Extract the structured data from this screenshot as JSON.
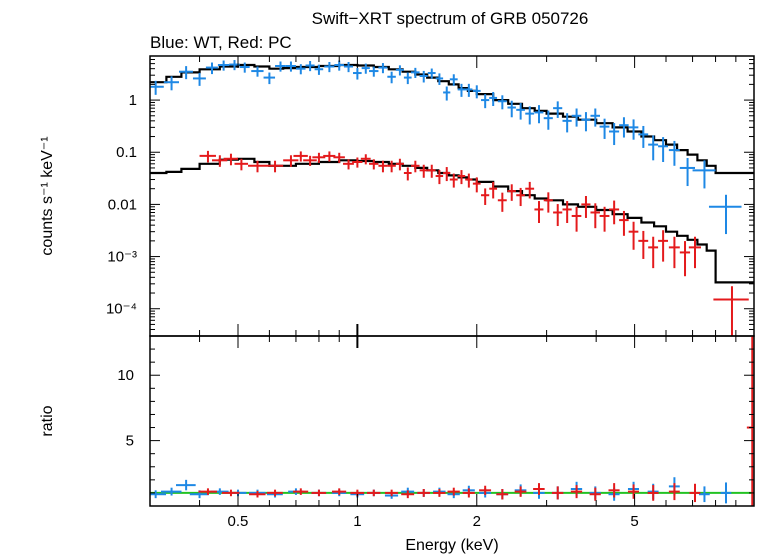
{
  "chart_data": [
    {
      "type": "scatter",
      "title": "Swift−XRT spectrum of GRB 050726",
      "subtitle": "Blue: WT, Red: PC",
      "xlabel": "",
      "ylabel": "counts s⁻¹ keV⁻¹",
      "xscale": "log",
      "yscale": "log",
      "xlim": [
        0.3,
        10
      ],
      "ylim": [
        3e-05,
        7
      ],
      "yticks": [
        {
          "value": 1,
          "label": "1"
        },
        {
          "value": 0.1,
          "label": "0.1"
        },
        {
          "value": 0.01,
          "label": "0.01"
        },
        {
          "value": 0.001,
          "label": "10⁻³"
        },
        {
          "value": 0.0001,
          "label": "10⁻⁴"
        }
      ],
      "colors": {
        "wt": "#1e88e5",
        "pc": "#e41a1c",
        "model": "#000000"
      },
      "series": [
        {
          "key": "wt",
          "x": [
            0.31,
            0.34,
            0.37,
            0.4,
            0.43,
            0.46,
            0.49,
            0.52,
            0.56,
            0.6,
            0.64,
            0.68,
            0.72,
            0.76,
            0.8,
            0.85,
            0.9,
            0.95,
            1.0,
            1.05,
            1.1,
            1.16,
            1.22,
            1.28,
            1.34,
            1.4,
            1.47,
            1.54,
            1.61,
            1.68,
            1.75,
            1.83,
            1.91,
            2.0,
            2.1,
            2.2,
            2.32,
            2.45,
            2.58,
            2.72,
            2.87,
            3.03,
            3.2,
            3.38,
            3.57,
            3.77,
            3.98,
            4.2,
            4.44,
            4.7,
            4.97,
            5.26,
            5.57,
            5.9,
            6.3,
            6.8,
            7.5,
            8.5
          ],
          "y": [
            1.8,
            2.2,
            3.5,
            2.6,
            4.2,
            4.7,
            4.8,
            4.3,
            3.6,
            2.7,
            4.5,
            4.5,
            4.0,
            4.6,
            3.9,
            4.4,
            4.7,
            4.4,
            3.3,
            4.1,
            3.6,
            4.2,
            2.8,
            3.8,
            2.7,
            3.4,
            2.9,
            3.3,
            2.6,
            1.4,
            2.5,
            1.6,
            1.6,
            1.5,
            1.0,
            1.1,
            0.95,
            0.72,
            0.65,
            0.55,
            0.58,
            0.45,
            0.7,
            0.4,
            0.5,
            0.42,
            0.5,
            0.31,
            0.25,
            0.33,
            0.3,
            0.22,
            0.14,
            0.13,
            0.11,
            0.05,
            0.045,
            0.009
          ],
          "xerr": [
            0.015,
            0.015,
            0.015,
            0.015,
            0.015,
            0.015,
            0.015,
            0.015,
            0.02,
            0.02,
            0.02,
            0.02,
            0.02,
            0.02,
            0.02,
            0.025,
            0.025,
            0.025,
            0.025,
            0.025,
            0.03,
            0.03,
            0.03,
            0.03,
            0.03,
            0.035,
            0.035,
            0.035,
            0.035,
            0.035,
            0.04,
            0.04,
            0.04,
            0.045,
            0.05,
            0.05,
            0.06,
            0.06,
            0.065,
            0.07,
            0.075,
            0.08,
            0.085,
            0.09,
            0.1,
            0.1,
            0.11,
            0.12,
            0.13,
            0.13,
            0.14,
            0.15,
            0.16,
            0.17,
            0.2,
            0.3,
            0.5,
            0.8
          ],
          "yerr_rel": [
            0.3,
            0.3,
            0.28,
            0.28,
            0.25,
            0.22,
            0.22,
            0.22,
            0.22,
            0.25,
            0.22,
            0.22,
            0.22,
            0.22,
            0.22,
            0.22,
            0.22,
            0.22,
            0.25,
            0.22,
            0.22,
            0.22,
            0.25,
            0.22,
            0.25,
            0.22,
            0.25,
            0.22,
            0.25,
            0.3,
            0.25,
            0.28,
            0.28,
            0.28,
            0.3,
            0.3,
            0.3,
            0.35,
            0.35,
            0.38,
            0.38,
            0.4,
            0.35,
            0.4,
            0.38,
            0.4,
            0.38,
            0.42,
            0.45,
            0.42,
            0.42,
            0.45,
            0.5,
            0.5,
            0.5,
            0.55,
            0.55,
            0.7
          ]
        },
        {
          "key": "pc",
          "x": [
            0.42,
            0.45,
            0.48,
            0.51,
            0.56,
            0.62,
            0.68,
            0.72,
            0.76,
            0.8,
            0.85,
            0.9,
            0.95,
            1.0,
            1.05,
            1.1,
            1.16,
            1.22,
            1.28,
            1.34,
            1.4,
            1.47,
            1.54,
            1.61,
            1.68,
            1.75,
            1.83,
            1.91,
            2.0,
            2.1,
            2.2,
            2.32,
            2.45,
            2.58,
            2.72,
            2.87,
            3.03,
            3.2,
            3.38,
            3.57,
            3.77,
            3.98,
            4.2,
            4.44,
            4.7,
            4.97,
            5.26,
            5.57,
            5.9,
            6.3,
            6.7,
            7.1,
            8.8
          ],
          "y": [
            0.085,
            0.07,
            0.075,
            0.06,
            0.055,
            0.055,
            0.07,
            0.085,
            0.07,
            0.08,
            0.085,
            0.08,
            0.06,
            0.065,
            0.075,
            0.06,
            0.055,
            0.055,
            0.06,
            0.04,
            0.055,
            0.045,
            0.045,
            0.035,
            0.04,
            0.03,
            0.035,
            0.03,
            0.025,
            0.015,
            0.02,
            0.012,
            0.018,
            0.015,
            0.02,
            0.008,
            0.012,
            0.007,
            0.008,
            0.006,
            0.01,
            0.007,
            0.006,
            0.008,
            0.005,
            0.003,
            0.002,
            0.0015,
            0.002,
            0.0015,
            0.0012,
            0.0015,
            0.00015
          ],
          "xerr": [
            0.02,
            0.02,
            0.02,
            0.02,
            0.03,
            0.03,
            0.03,
            0.03,
            0.03,
            0.03,
            0.03,
            0.03,
            0.03,
            0.03,
            0.03,
            0.03,
            0.03,
            0.03,
            0.03,
            0.03,
            0.035,
            0.035,
            0.035,
            0.035,
            0.035,
            0.04,
            0.04,
            0.04,
            0.045,
            0.05,
            0.05,
            0.06,
            0.06,
            0.065,
            0.07,
            0.075,
            0.08,
            0.085,
            0.09,
            0.1,
            0.1,
            0.11,
            0.12,
            0.13,
            0.13,
            0.14,
            0.15,
            0.16,
            0.17,
            0.2,
            0.2,
            0.25,
            0.9
          ],
          "yerr_rel": [
            0.25,
            0.25,
            0.25,
            0.25,
            0.25,
            0.25,
            0.25,
            0.22,
            0.22,
            0.22,
            0.22,
            0.22,
            0.22,
            0.22,
            0.22,
            0.22,
            0.25,
            0.25,
            0.25,
            0.28,
            0.25,
            0.28,
            0.28,
            0.3,
            0.3,
            0.3,
            0.3,
            0.3,
            0.32,
            0.35,
            0.35,
            0.4,
            0.35,
            0.38,
            0.35,
            0.45,
            0.42,
            0.45,
            0.45,
            0.5,
            0.45,
            0.5,
            0.5,
            0.48,
            0.5,
            0.55,
            0.55,
            0.6,
            0.6,
            0.6,
            0.65,
            0.6,
            0.8
          ]
        }
      ],
      "models": [
        {
          "key": "wt",
          "x": [
            0.3,
            0.33,
            0.36,
            0.4,
            0.45,
            0.5,
            0.55,
            0.6,
            0.65,
            0.7,
            0.8,
            0.9,
            1.0,
            1.1,
            1.2,
            1.3,
            1.4,
            1.5,
            1.6,
            1.7,
            1.8,
            1.9,
            2.0,
            2.2,
            2.4,
            2.6,
            2.8,
            3.0,
            3.3,
            3.6,
            4.0,
            4.4,
            4.8,
            5.2,
            5.6,
            6.0,
            6.4,
            6.8,
            7.2,
            7.6,
            8.0,
            10.0
          ],
          "y": [
            2.2,
            2.8,
            3.4,
            3.9,
            4.4,
            4.7,
            4.4,
            4.0,
            4.1,
            4.3,
            4.5,
            4.7,
            4.6,
            4.3,
            3.9,
            3.5,
            3.1,
            2.7,
            2.3,
            2.0,
            1.7,
            1.5,
            1.3,
            1.0,
            0.85,
            0.7,
            0.62,
            0.55,
            0.48,
            0.42,
            0.36,
            0.3,
            0.25,
            0.2,
            0.17,
            0.14,
            0.11,
            0.09,
            0.07,
            0.055,
            0.04,
            0.025
          ]
        },
        {
          "key": "pc",
          "x": [
            0.3,
            0.33,
            0.36,
            0.4,
            0.45,
            0.5,
            0.55,
            0.6,
            0.65,
            0.7,
            0.8,
            0.9,
            1.0,
            1.1,
            1.2,
            1.3,
            1.4,
            1.5,
            1.6,
            1.7,
            1.8,
            1.9,
            2.0,
            2.2,
            2.4,
            2.6,
            2.8,
            3.0,
            3.3,
            3.6,
            4.0,
            4.4,
            4.8,
            5.2,
            5.6,
            6.0,
            6.4,
            6.8,
            7.2,
            7.6,
            8.0,
            10.0
          ],
          "y": [
            0.04,
            0.042,
            0.048,
            0.06,
            0.072,
            0.075,
            0.065,
            0.055,
            0.055,
            0.06,
            0.065,
            0.07,
            0.068,
            0.065,
            0.06,
            0.055,
            0.05,
            0.045,
            0.04,
            0.036,
            0.033,
            0.03,
            0.027,
            0.022,
            0.018,
            0.015,
            0.013,
            0.012,
            0.01,
            0.009,
            0.0078,
            0.0065,
            0.0055,
            0.0045,
            0.0038,
            0.003,
            0.0025,
            0.0021,
            0.0017,
            0.0013,
            0.00032,
            0.00032
          ]
        }
      ]
    },
    {
      "type": "scatter",
      "xlabel": "Energy (keV)",
      "ylabel": "ratio",
      "xscale": "log",
      "yscale": "linear",
      "xlim": [
        0.3,
        10
      ],
      "ylim": [
        0,
        13
      ],
      "xticks": [
        {
          "value": 0.5,
          "label": "0.5"
        },
        {
          "value": 1,
          "label": "1"
        },
        {
          "value": 2,
          "label": "2"
        },
        {
          "value": 5,
          "label": "5"
        }
      ],
      "yticks": [
        {
          "value": 5,
          "label": "5"
        },
        {
          "value": 10,
          "label": "10"
        }
      ],
      "reference_line": {
        "y": 1,
        "color": "#22c322"
      },
      "series": [
        {
          "key": "wt",
          "x": [
            0.31,
            0.34,
            0.37,
            0.4,
            0.45,
            0.5,
            0.56,
            0.62,
            0.7,
            0.8,
            0.9,
            1.0,
            1.1,
            1.22,
            1.34,
            1.47,
            1.61,
            1.75,
            1.91,
            2.1,
            2.32,
            2.58,
            2.87,
            3.2,
            3.57,
            3.98,
            4.44,
            4.97,
            5.57,
            6.3,
            7.5,
            8.5
          ],
          "y": [
            0.9,
            1.1,
            1.6,
            0.9,
            1.1,
            1.0,
            1.0,
            0.9,
            1.1,
            1.0,
            1.0,
            0.9,
            1.0,
            0.8,
            1.1,
            1.0,
            1.1,
            0.9,
            1.2,
            1.0,
            0.9,
            1.2,
            1.0,
            1.0,
            1.3,
            1.0,
            0.9,
            1.3,
            1.1,
            1.5,
            0.9,
            1.0
          ],
          "yerr": [
            0.3,
            0.3,
            0.4,
            0.3,
            0.25,
            0.25,
            0.25,
            0.25,
            0.25,
            0.25,
            0.25,
            0.25,
            0.25,
            0.25,
            0.3,
            0.3,
            0.3,
            0.3,
            0.35,
            0.35,
            0.4,
            0.45,
            0.45,
            0.5,
            0.55,
            0.5,
            0.5,
            0.55,
            0.6,
            0.7,
            0.6,
            0.8
          ]
        },
        {
          "key": "pc",
          "x": [
            0.42,
            0.48,
            0.56,
            0.62,
            0.72,
            0.8,
            0.9,
            1.0,
            1.1,
            1.22,
            1.34,
            1.47,
            1.61,
            1.75,
            1.91,
            2.1,
            2.32,
            2.58,
            2.87,
            3.2,
            3.57,
            3.98,
            4.44,
            4.97,
            5.57,
            6.3,
            7.1,
            9.9
          ],
          "y": [
            1.1,
            1.0,
            0.9,
            1.0,
            1.1,
            1.0,
            1.1,
            1.0,
            1.0,
            1.0,
            0.9,
            1.0,
            1.0,
            1.1,
            1.0,
            1.2,
            0.9,
            1.1,
            1.3,
            1.0,
            1.1,
            0.9,
            1.2,
            1.1,
            1.0,
            1.1,
            1.0,
            6.0
          ],
          "yerr": [
            0.25,
            0.25,
            0.25,
            0.25,
            0.25,
            0.25,
            0.25,
            0.25,
            0.25,
            0.25,
            0.3,
            0.3,
            0.3,
            0.3,
            0.35,
            0.35,
            0.4,
            0.4,
            0.45,
            0.5,
            0.5,
            0.5,
            0.55,
            0.55,
            0.6,
            0.65,
            0.7,
            7.0
          ]
        }
      ]
    }
  ]
}
